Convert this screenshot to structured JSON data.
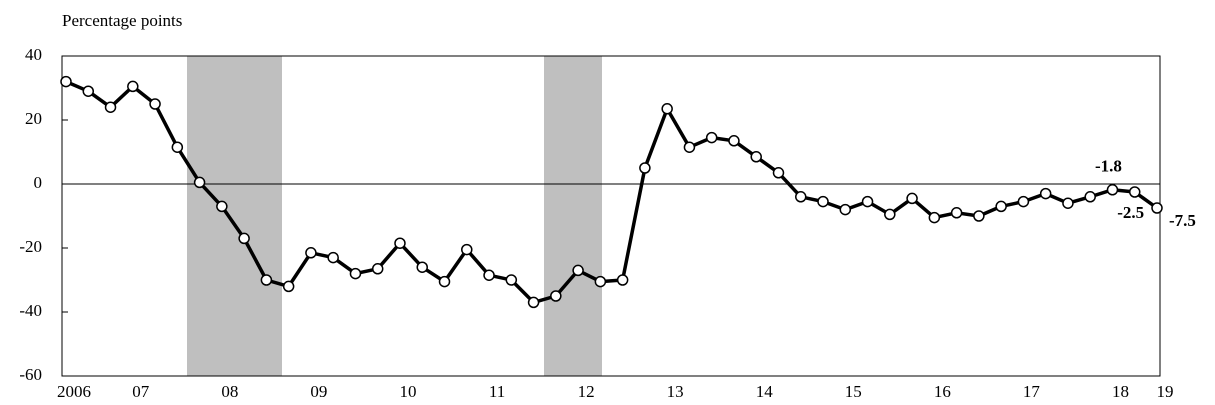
{
  "chart_data": {
    "type": "line",
    "y_label": "Percentage points",
    "categories": [
      "2006",
      null,
      null,
      "07",
      null,
      null,
      null,
      "08",
      null,
      null,
      null,
      "09",
      null,
      null,
      null,
      "10",
      null,
      null,
      null,
      "11",
      null,
      null,
      null,
      "12",
      null,
      null,
      null,
      "13",
      null,
      null,
      null,
      "14",
      null,
      null,
      null,
      "15",
      null,
      null,
      null,
      "16",
      null,
      null,
      null,
      "17",
      null,
      null,
      null,
      "18",
      null,
      "19"
    ],
    "series": [
      {
        "name": null,
        "color": "#000000",
        "values": [
          32,
          29,
          24,
          30.5,
          25,
          11.5,
          0.5,
          -7,
          -17,
          -30,
          -32,
          -21.5,
          -23,
          -28,
          -26.5,
          -18.5,
          -26,
          -30.5,
          -20.5,
          -28.5,
          -30,
          -37,
          -35,
          -27,
          -30.5,
          -30,
          5,
          23.5,
          11.5,
          14.5,
          13.5,
          8.5,
          3.5,
          -4,
          -5.5,
          -8,
          -5.5,
          -9.5,
          -4.5,
          -10.5,
          -9,
          -10,
          -7,
          -5.5,
          -3,
          -6,
          -4,
          -1.8,
          -2.5,
          -7.5
        ],
        "value_labels": [
          null,
          null,
          null,
          null,
          null,
          null,
          null,
          null,
          null,
          null,
          null,
          null,
          null,
          null,
          null,
          null,
          null,
          null,
          null,
          null,
          null,
          null,
          null,
          null,
          null,
          null,
          null,
          null,
          null,
          null,
          null,
          null,
          null,
          null,
          null,
          null,
          null,
          null,
          null,
          null,
          null,
          null,
          null,
          null,
          null,
          null,
          null,
          "-1.8",
          "-2.5",
          "-7.5"
        ]
      }
    ],
    "ylim": [
      -60,
      40
    ],
    "yticks": [
      -60,
      -40,
      -20,
      0,
      20,
      40
    ],
    "zero_line": true
  }
}
